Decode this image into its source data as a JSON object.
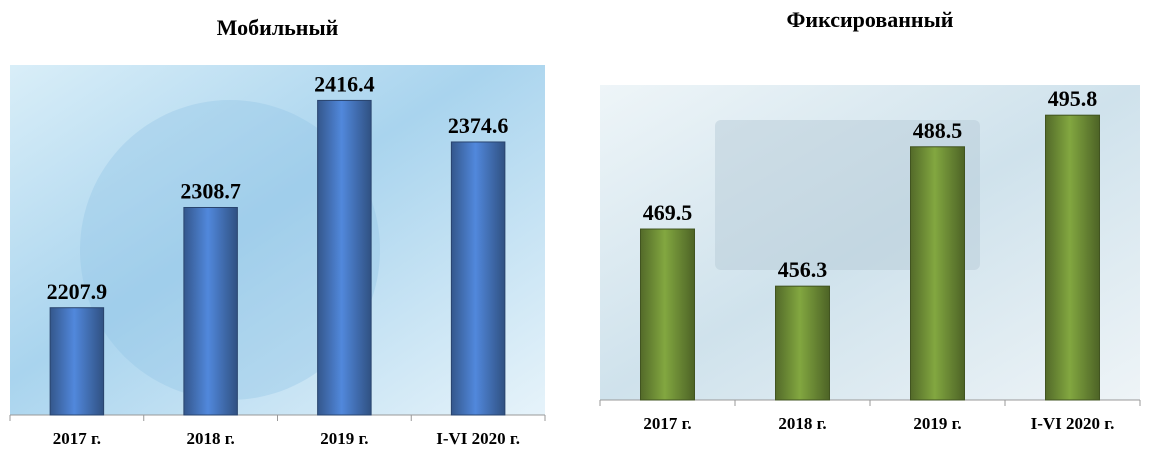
{
  "chart_data": [
    {
      "type": "bar",
      "title": "Мобильный",
      "categories": [
        "2017 г.",
        "2018 г.",
        "2019 г.",
        "I-VI 2020 г."
      ],
      "values": [
        2207.9,
        2308.7,
        2416.4,
        2374.6
      ],
      "color": "#4a7cc8",
      "ylim": [
        2100,
        2450
      ]
    },
    {
      "type": "bar",
      "title": "Фиксированный",
      "categories": [
        "2017 г.",
        "2018 г.",
        "2019 г.",
        "I-VI 2020 г."
      ],
      "values": [
        469.5,
        456.3,
        488.5,
        495.8
      ],
      "color": "#76983a",
      "ylim": [
        430,
        500
      ]
    }
  ]
}
